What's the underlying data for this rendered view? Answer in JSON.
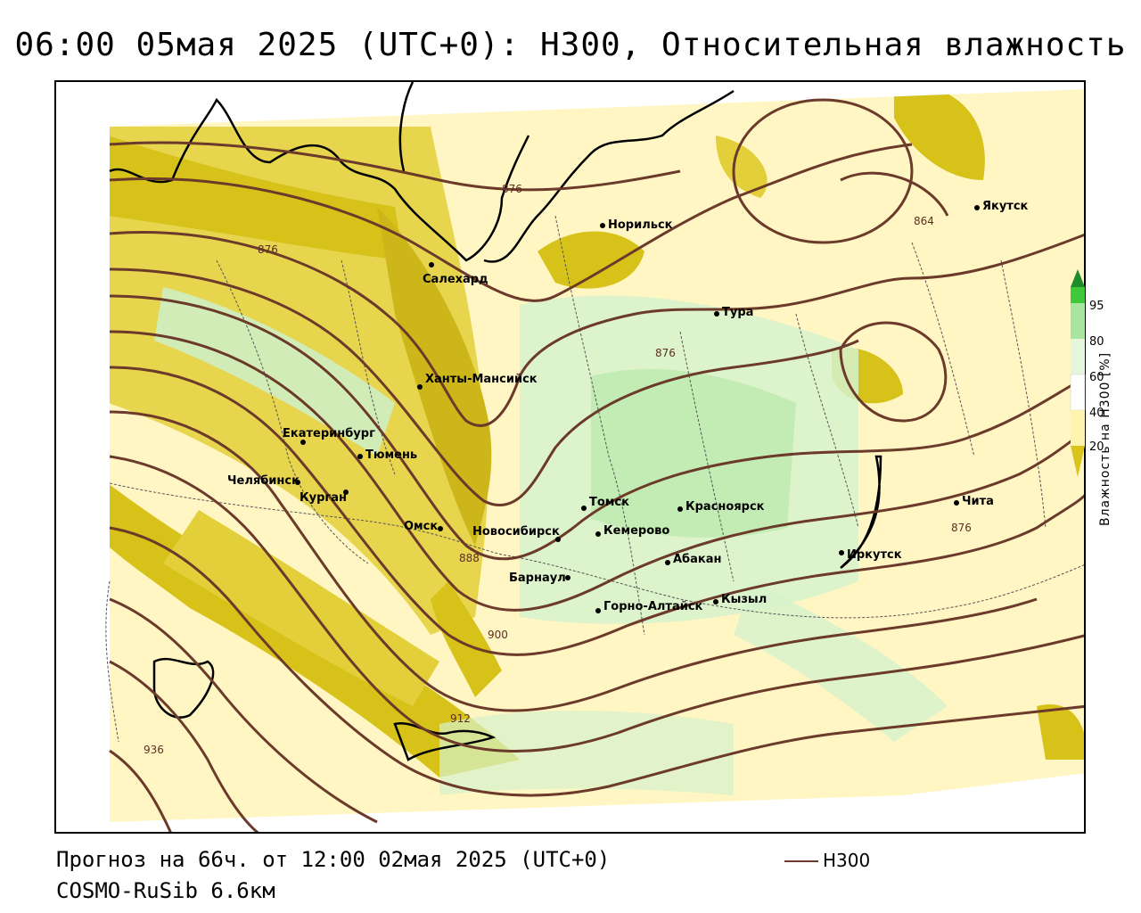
{
  "title": "06:00 05мая 2025 (UTC+0): H300, Относительная влажность",
  "footer": {
    "forecast": "Прогноз на 66ч. от 12:00 02мая 2025 (UTC+0)",
    "model": "COSMO-RuSib 6.6км"
  },
  "legend": {
    "line_label": "H300",
    "line_color": "#6b3a2a"
  },
  "colorbar": {
    "title": "Влажность на H300 [%]",
    "ticks": [
      "95",
      "80",
      "60",
      "40",
      "20"
    ],
    "colors": [
      "#1e8c2a",
      "#3ec83a",
      "#a8e6a0",
      "#e4f6dc",
      "#ffffff",
      "#fff3b0",
      "#d9c41c"
    ]
  },
  "contour_labels": [
    "876",
    "876",
    "864",
    "876",
    "888",
    "900",
    "912",
    "936",
    "876"
  ],
  "cities": [
    {
      "name": "Салехард"
    },
    {
      "name": "Норильск"
    },
    {
      "name": "Якутск"
    },
    {
      "name": "Тура"
    },
    {
      "name": "Ханты-Мансийск"
    },
    {
      "name": "Екатеринбург"
    },
    {
      "name": "Тюмень"
    },
    {
      "name": "Челябинск"
    },
    {
      "name": "Курган"
    },
    {
      "name": "Омск"
    },
    {
      "name": "Новосибирск"
    },
    {
      "name": "Томск"
    },
    {
      "name": "Кемерово"
    },
    {
      "name": "Красноярск"
    },
    {
      "name": "Абакан"
    },
    {
      "name": "Барнаул"
    },
    {
      "name": "Горно-Алтайск"
    },
    {
      "name": "Кызыл"
    },
    {
      "name": "Иркутск"
    },
    {
      "name": "Чита"
    }
  ]
}
